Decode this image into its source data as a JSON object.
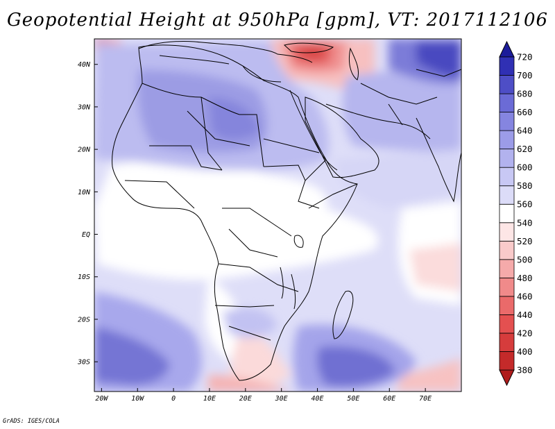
{
  "title": "Geopotential Height at 950hPa [gpm], VT: 2017112106",
  "credit": "GrADS: IGES/COLA",
  "map": {
    "lon_range": [
      -22,
      80
    ],
    "lat_range": [
      -37,
      46
    ],
    "lon_ticks": [
      {
        "value": -20,
        "label": "20W"
      },
      {
        "value": -10,
        "label": "10W"
      },
      {
        "value": 0,
        "label": "0"
      },
      {
        "value": 10,
        "label": "10E"
      },
      {
        "value": 20,
        "label": "20E"
      },
      {
        "value": 30,
        "label": "30E"
      },
      {
        "value": 40,
        "label": "40E"
      },
      {
        "value": 50,
        "label": "50E"
      },
      {
        "value": 60,
        "label": "60E"
      },
      {
        "value": 70,
        "label": "70E"
      }
    ],
    "lat_ticks": [
      {
        "value": 40,
        "label": "40N"
      },
      {
        "value": 30,
        "label": "30N"
      },
      {
        "value": 20,
        "label": "20N"
      },
      {
        "value": 10,
        "label": "10N"
      },
      {
        "value": 0,
        "label": "EQ"
      },
      {
        "value": -10,
        "label": "10S"
      },
      {
        "value": -20,
        "label": "20S"
      },
      {
        "value": -30,
        "label": "30S"
      }
    ]
  },
  "colorbar": {
    "levels": [
      "380",
      "400",
      "420",
      "440",
      "460",
      "480",
      "500",
      "520",
      "540",
      "560",
      "580",
      "600",
      "620",
      "640",
      "660",
      "680",
      "700",
      "720"
    ],
    "colors": [
      "#b01c1c",
      "#c42a2a",
      "#d63c3c",
      "#e45050",
      "#ea6a6a",
      "#f08a8a",
      "#f5aaaa",
      "#f9caca",
      "#fde6e6",
      "#ffffff",
      "#dcdcf8",
      "#c8c8f4",
      "#b2b2ee",
      "#9c9ce8",
      "#8585e0",
      "#6b6bd6",
      "#4e4ec6",
      "#3030b4",
      "#1c1c9a"
    ]
  }
}
